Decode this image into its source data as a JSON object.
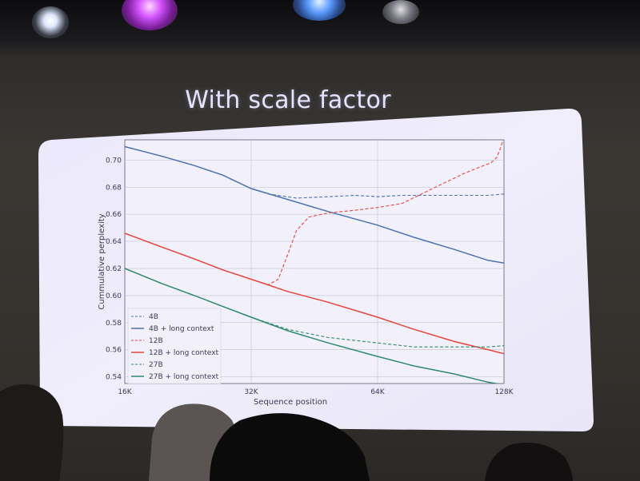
{
  "slide": {
    "title": "With scale factor"
  },
  "chart_data": {
    "type": "line",
    "xlabel": "Sequence position",
    "ylabel": "Cummulative perplexity",
    "x_scale": "log2",
    "xlim": [
      16384,
      131072
    ],
    "ylim": [
      0.535,
      0.715
    ],
    "x_ticks": [
      {
        "value": 16384,
        "label": "16K"
      },
      {
        "value": 32768,
        "label": "32K"
      },
      {
        "value": 65536,
        "label": "64K"
      },
      {
        "value": 131072,
        "label": "128K"
      }
    ],
    "y_ticks": [
      {
        "value": 0.54,
        "label": "0.54"
      },
      {
        "value": 0.56,
        "label": "0.56"
      },
      {
        "value": 0.58,
        "label": "0.58"
      },
      {
        "value": 0.6,
        "label": "0.60"
      },
      {
        "value": 0.62,
        "label": "0.62"
      },
      {
        "value": 0.64,
        "label": "0.64"
      },
      {
        "value": 0.66,
        "label": "0.66"
      },
      {
        "value": 0.68,
        "label": "0.68"
      },
      {
        "value": 0.7,
        "label": "0.70"
      }
    ],
    "grid": true,
    "legend_position": "bottom-left",
    "series": [
      {
        "name": "4B",
        "color": "#4c72b0",
        "dash": true,
        "x": [
          16384,
          20000,
          24000,
          28000,
          32768,
          36000,
          42000,
          50000,
          58000,
          65536,
          75000,
          90000,
          105000,
          120000,
          131072
        ],
        "y": [
          0.71,
          0.703,
          0.696,
          0.689,
          0.679,
          0.675,
          0.672,
          0.673,
          0.674,
          0.673,
          0.674,
          0.674,
          0.674,
          0.674,
          0.675
        ]
      },
      {
        "name": "4B + long context",
        "color": "#4c72b0",
        "dash": false,
        "x": [
          16384,
          20000,
          24000,
          28000,
          32768,
          40000,
          50000,
          65536,
          80000,
          100000,
          120000,
          131072
        ],
        "y": [
          0.71,
          0.703,
          0.696,
          0.689,
          0.679,
          0.671,
          0.662,
          0.652,
          0.643,
          0.634,
          0.626,
          0.624
        ]
      },
      {
        "name": "12B",
        "color": "#e8453c",
        "dash": true,
        "x": [
          16384,
          20000,
          24000,
          28000,
          32768,
          36000,
          38000,
          40000,
          42000,
          45000,
          50000,
          58000,
          65536,
          75000,
          90000,
          105000,
          115000,
          122000,
          126000,
          129000,
          131072
        ],
        "y": [
          0.646,
          0.636,
          0.627,
          0.619,
          0.612,
          0.608,
          0.612,
          0.63,
          0.648,
          0.658,
          0.661,
          0.663,
          0.665,
          0.668,
          0.68,
          0.69,
          0.695,
          0.698,
          0.702,
          0.71,
          0.718
        ]
      },
      {
        "name": "12B + long context",
        "color": "#e8453c",
        "dash": false,
        "x": [
          16384,
          20000,
          24000,
          28000,
          32768,
          40000,
          50000,
          65536,
          80000,
          100000,
          120000,
          131072
        ],
        "y": [
          0.646,
          0.636,
          0.627,
          0.619,
          0.612,
          0.603,
          0.595,
          0.584,
          0.575,
          0.566,
          0.56,
          0.557
        ]
      },
      {
        "name": "27B",
        "color": "#2e8a6e",
        "dash": true,
        "x": [
          16384,
          20000,
          24000,
          28000,
          32768,
          40000,
          50000,
          65536,
          80000,
          100000,
          120000,
          131072
        ],
        "y": [
          0.62,
          0.609,
          0.6,
          0.592,
          0.584,
          0.575,
          0.569,
          0.565,
          0.562,
          0.562,
          0.562,
          0.563
        ]
      },
      {
        "name": "27B + long context",
        "color": "#2e8a6e",
        "dash": false,
        "x": [
          16384,
          20000,
          24000,
          28000,
          32768,
          40000,
          50000,
          65536,
          80000,
          100000,
          120000,
          131072
        ],
        "y": [
          0.62,
          0.609,
          0.6,
          0.592,
          0.584,
          0.574,
          0.565,
          0.555,
          0.548,
          0.542,
          0.536,
          0.534
        ]
      }
    ]
  }
}
